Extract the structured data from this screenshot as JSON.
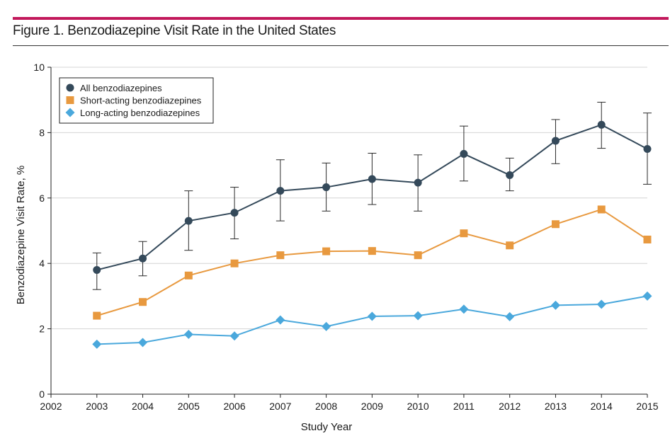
{
  "figure": {
    "title": "Figure 1. Benzodiazepine Visit Rate in the United States",
    "accent_color": "#c2185b"
  },
  "chart_data": {
    "type": "line",
    "xlabel": "Study Year",
    "ylabel": "Benzodiazepine Visit Rate, %",
    "xlim": [
      2002,
      2015
    ],
    "ylim": [
      0,
      10
    ],
    "x_ticks": [
      2002,
      2003,
      2004,
      2005,
      2006,
      2007,
      2008,
      2009,
      2010,
      2011,
      2012,
      2013,
      2014,
      2015
    ],
    "y_ticks": [
      0,
      2,
      4,
      6,
      8,
      10
    ],
    "grid": "horizontal",
    "legend_position": "top-left",
    "x": [
      2003,
      2004,
      2005,
      2006,
      2007,
      2008,
      2009,
      2010,
      2011,
      2012,
      2013,
      2014,
      2015
    ],
    "series": [
      {
        "name": "All benzodiazepines",
        "marker": "circle",
        "color": "#34495a",
        "values": [
          3.8,
          4.15,
          5.3,
          5.55,
          6.22,
          6.33,
          6.58,
          6.47,
          7.35,
          6.7,
          7.75,
          8.24,
          7.5
        ],
        "error_low": [
          3.2,
          3.62,
          4.4,
          4.75,
          5.3,
          5.6,
          5.8,
          5.6,
          6.52,
          6.22,
          7.05,
          7.52,
          6.42
        ],
        "error_high": [
          4.32,
          4.67,
          6.22,
          6.33,
          7.17,
          7.07,
          7.37,
          7.32,
          8.2,
          7.22,
          8.4,
          8.93,
          8.6
        ]
      },
      {
        "name": "Short-acting benzodiazepines",
        "marker": "square",
        "color": "#e8993f",
        "values": [
          2.4,
          2.82,
          3.63,
          4.0,
          4.25,
          4.37,
          4.38,
          4.25,
          4.92,
          4.55,
          5.2,
          5.65,
          4.73
        ]
      },
      {
        "name": "Long-acting benzodiazepines",
        "marker": "diamond",
        "color": "#4aa8dc",
        "values": [
          1.53,
          1.58,
          1.83,
          1.78,
          2.27,
          2.07,
          2.38,
          2.4,
          2.6,
          2.37,
          2.72,
          2.75,
          3.0
        ]
      }
    ]
  }
}
